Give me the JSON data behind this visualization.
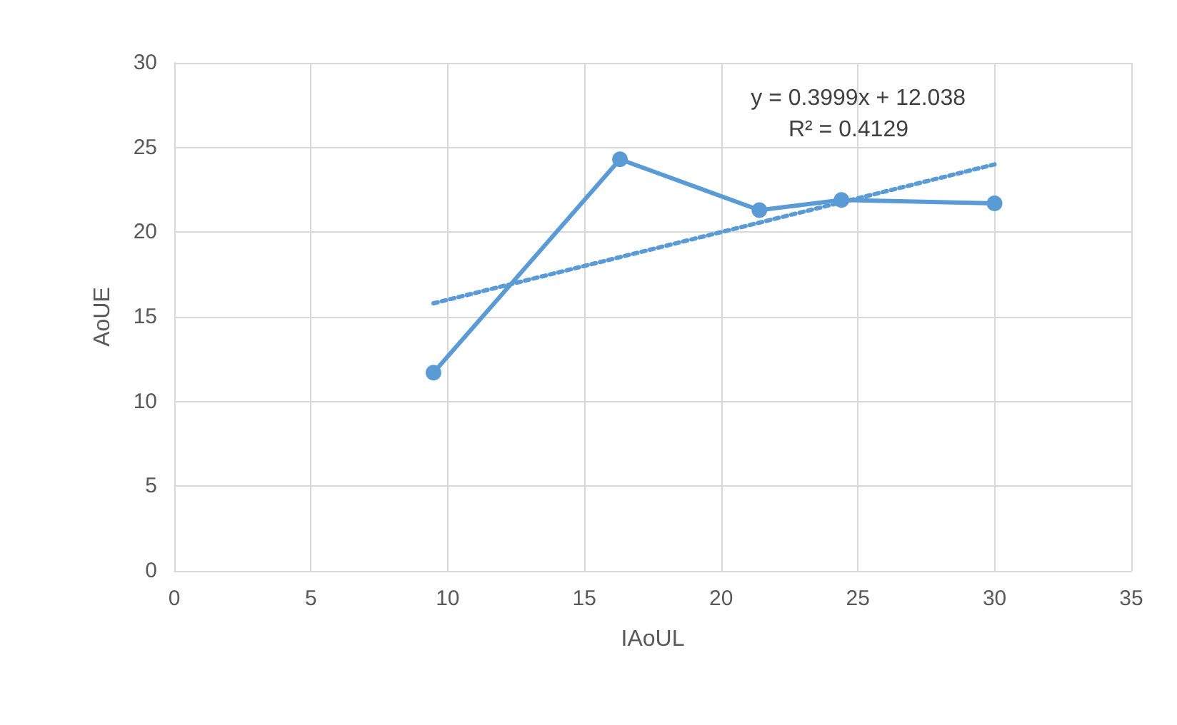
{
  "chart_data": {
    "type": "line",
    "xlabel": "IAoUL",
    "ylabel": "AoUE",
    "x": [
      9.48,
      16.3,
      21.4,
      24.4,
      30.0
    ],
    "series": [
      {
        "color": "#5b9bd5",
        "values": [
          11.7,
          24.3,
          21.3,
          21.9,
          21.7
        ],
        "marker": "circle",
        "line_style": "solid"
      },
      {
        "type": "line",
        "color": "#5b9bd5",
        "x": [
          9.48,
          30.0
        ],
        "values": [
          15.8,
          24.0
        ],
        "marker": "none",
        "line_style": "dotted"
      }
    ],
    "annotations": [
      "y = 0.3999x + 12.038",
      "R² = 0.4129"
    ],
    "xlim": [
      0,
      35
    ],
    "xticks": [
      0,
      5,
      10,
      15,
      20,
      25,
      30,
      35
    ],
    "ylim": [
      0,
      30
    ],
    "yticks": [
      0,
      5,
      10,
      15,
      20,
      25,
      30
    ],
    "grid": true
  }
}
